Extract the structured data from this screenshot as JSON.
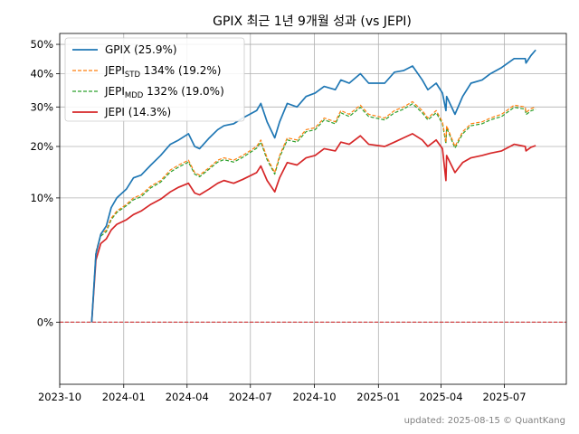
{
  "chart_data": {
    "type": "line",
    "title": "GPIX 최근 1년 9개월 성과 (vs JEPI)",
    "xlabel": "",
    "ylabel": "",
    "x_range": [
      "2023-10-01",
      "2025-09-28"
    ],
    "ylim": [
      -2.5,
      54
    ],
    "x_ticks": [
      {
        "date": "2023-10-01",
        "label": "2023-10"
      },
      {
        "date": "2024-01-01",
        "label": "2024-01"
      },
      {
        "date": "2024-04-01",
        "label": "2024-04"
      },
      {
        "date": "2024-07-01",
        "label": "2024-07"
      },
      {
        "date": "2024-10-01",
        "label": "2024-10"
      },
      {
        "date": "2025-01-01",
        "label": "2025-01"
      },
      {
        "date": "2025-04-01",
        "label": "2025-04"
      },
      {
        "date": "2025-07-01",
        "label": "2025-07"
      }
    ],
    "y_ticks": [
      {
        "value": 0,
        "label": "0%"
      },
      {
        "value": 10,
        "label": "10%"
      },
      {
        "value": 20,
        "label": "20%"
      },
      {
        "value": 30,
        "label": "30%"
      },
      {
        "value": 40,
        "label": "40%"
      },
      {
        "value": 50,
        "label": "50%"
      }
    ],
    "y_scale": "sqrt",
    "grid": true,
    "legend_position": "top-left",
    "reference_line": {
      "y": 0,
      "color": "#d62728",
      "style": "dashed"
    },
    "series": [
      {
        "key": "gpix",
        "name": "GPIX (25.9%)",
        "color": "#1f77b4",
        "style": "solid",
        "points": [
          [
            "2023-11-16",
            0
          ],
          [
            "2023-11-22",
            3
          ],
          [
            "2023-11-29",
            5
          ],
          [
            "2023-12-07",
            6
          ],
          [
            "2023-12-14",
            8.5
          ],
          [
            "2023-12-22",
            10
          ],
          [
            "2024-01-05",
            11.5
          ],
          [
            "2024-01-15",
            13.5
          ],
          [
            "2024-01-26",
            14
          ],
          [
            "2024-02-09",
            16
          ],
          [
            "2024-02-23",
            18
          ],
          [
            "2024-03-08",
            20.5
          ],
          [
            "2024-03-20",
            21.5
          ],
          [
            "2024-04-03",
            23
          ],
          [
            "2024-04-12",
            20
          ],
          [
            "2024-04-19",
            19.5
          ],
          [
            "2024-05-03",
            22
          ],
          [
            "2024-05-15",
            24
          ],
          [
            "2024-05-24",
            25
          ],
          [
            "2024-06-07",
            25.5
          ],
          [
            "2024-06-20",
            27
          ],
          [
            "2024-07-10",
            29
          ],
          [
            "2024-07-16",
            31
          ],
          [
            "2024-07-25",
            26
          ],
          [
            "2024-08-05",
            22
          ],
          [
            "2024-08-12",
            26
          ],
          [
            "2024-08-23",
            31
          ],
          [
            "2024-09-06",
            30
          ],
          [
            "2024-09-19",
            33
          ],
          [
            "2024-10-02",
            34
          ],
          [
            "2024-10-15",
            36
          ],
          [
            "2024-10-31",
            35
          ],
          [
            "2024-11-08",
            38
          ],
          [
            "2024-11-20",
            37
          ],
          [
            "2024-12-06",
            40
          ],
          [
            "2024-12-18",
            37
          ],
          [
            "2025-01-10",
            37
          ],
          [
            "2025-01-24",
            40.5
          ],
          [
            "2025-02-06",
            41
          ],
          [
            "2025-02-19",
            42.5
          ],
          [
            "2025-03-05",
            38
          ],
          [
            "2025-03-13",
            35
          ],
          [
            "2025-03-25",
            37
          ],
          [
            "2025-04-03",
            34
          ],
          [
            "2025-04-08",
            29
          ],
          [
            "2025-04-09",
            33
          ],
          [
            "2025-04-21",
            28
          ],
          [
            "2025-05-02",
            33
          ],
          [
            "2025-05-14",
            37
          ],
          [
            "2025-05-30",
            38
          ],
          [
            "2025-06-11",
            40
          ],
          [
            "2025-06-27",
            42
          ],
          [
            "2025-07-15",
            45
          ],
          [
            "2025-07-31",
            45
          ],
          [
            "2025-08-01",
            43.5
          ],
          [
            "2025-08-08",
            46
          ],
          [
            "2025-08-15",
            48
          ]
        ]
      },
      {
        "key": "jepi_std",
        "name": "JEPI_STD 134% (19.2%)",
        "name_main": "JEPI",
        "name_sub": "STD",
        "name_rest": " 134% (19.2%)",
        "color": "#ff7f0e",
        "style": "dashed",
        "points": [
          [
            "2023-11-16",
            0
          ],
          [
            "2023-11-22",
            3.2
          ],
          [
            "2023-11-29",
            5
          ],
          [
            "2023-12-07",
            5.5
          ],
          [
            "2023-12-14",
            7
          ],
          [
            "2023-12-22",
            8
          ],
          [
            "2024-01-05",
            9
          ],
          [
            "2024-01-15",
            10
          ],
          [
            "2024-01-26",
            10.5
          ],
          [
            "2024-02-09",
            12
          ],
          [
            "2024-02-23",
            13
          ],
          [
            "2024-03-08",
            15
          ],
          [
            "2024-03-20",
            16
          ],
          [
            "2024-04-03",
            17
          ],
          [
            "2024-04-12",
            14.5
          ],
          [
            "2024-04-19",
            14
          ],
          [
            "2024-05-03",
            15.5
          ],
          [
            "2024-05-15",
            17
          ],
          [
            "2024-05-24",
            17.5
          ],
          [
            "2024-06-07",
            17
          ],
          [
            "2024-06-20",
            18
          ],
          [
            "2024-07-10",
            20
          ],
          [
            "2024-07-16",
            21.5
          ],
          [
            "2024-07-25",
            17.5
          ],
          [
            "2024-08-05",
            14.5
          ],
          [
            "2024-08-12",
            18
          ],
          [
            "2024-08-23",
            22
          ],
          [
            "2024-09-06",
            21.5
          ],
          [
            "2024-09-19",
            24
          ],
          [
            "2024-10-02",
            24.5
          ],
          [
            "2024-10-15",
            27
          ],
          [
            "2024-10-31",
            26
          ],
          [
            "2024-11-08",
            29
          ],
          [
            "2024-11-20",
            28
          ],
          [
            "2024-12-06",
            30.5
          ],
          [
            "2024-12-18",
            28
          ],
          [
            "2025-01-10",
            27
          ],
          [
            "2025-01-24",
            29
          ],
          [
            "2025-02-06",
            30
          ],
          [
            "2025-02-19",
            31.5
          ],
          [
            "2025-03-05",
            29
          ],
          [
            "2025-03-13",
            27
          ],
          [
            "2025-03-25",
            29
          ],
          [
            "2025-04-03",
            26
          ],
          [
            "2025-04-08",
            21
          ],
          [
            "2025-04-09",
            25
          ],
          [
            "2025-04-21",
            20
          ],
          [
            "2025-05-02",
            23.5
          ],
          [
            "2025-05-14",
            25.5
          ],
          [
            "2025-05-30",
            26
          ],
          [
            "2025-06-11",
            27
          ],
          [
            "2025-06-27",
            28
          ],
          [
            "2025-07-15",
            30.5
          ],
          [
            "2025-07-31",
            30
          ],
          [
            "2025-08-01",
            28.5
          ],
          [
            "2025-08-08",
            29.5
          ],
          [
            "2025-08-15",
            30
          ]
        ]
      },
      {
        "key": "jepi_mdd",
        "name": "JEPI_MDD 132% (19.0%)",
        "name_main": "JEPI",
        "name_sub": "MDD",
        "name_rest": " 132% (19.0%)",
        "color": "#2ca02c",
        "style": "dashed",
        "points": [
          [
            "2023-11-16",
            0
          ],
          [
            "2023-11-22",
            3.1
          ],
          [
            "2023-11-29",
            4.8
          ],
          [
            "2023-12-07",
            5.3
          ],
          [
            "2023-12-14",
            6.8
          ],
          [
            "2023-12-22",
            7.8
          ],
          [
            "2024-01-05",
            8.8
          ],
          [
            "2024-01-15",
            9.7
          ],
          [
            "2024-01-26",
            10.2
          ],
          [
            "2024-02-09",
            11.7
          ],
          [
            "2024-02-23",
            12.7
          ],
          [
            "2024-03-08",
            14.6
          ],
          [
            "2024-03-20",
            15.6
          ],
          [
            "2024-04-03",
            16.6
          ],
          [
            "2024-04-12",
            14.2
          ],
          [
            "2024-04-19",
            13.7
          ],
          [
            "2024-05-03",
            15.2
          ],
          [
            "2024-05-15",
            16.6
          ],
          [
            "2024-05-24",
            17.1
          ],
          [
            "2024-06-07",
            16.6
          ],
          [
            "2024-06-20",
            17.6
          ],
          [
            "2024-07-10",
            19.6
          ],
          [
            "2024-07-16",
            21
          ],
          [
            "2024-07-25",
            17.1
          ],
          [
            "2024-08-05",
            14.2
          ],
          [
            "2024-08-12",
            17.6
          ],
          [
            "2024-08-23",
            21.5
          ],
          [
            "2024-09-06",
            21
          ],
          [
            "2024-09-19",
            23.5
          ],
          [
            "2024-10-02",
            24
          ],
          [
            "2024-10-15",
            26.5
          ],
          [
            "2024-10-31",
            25.5
          ],
          [
            "2024-11-08",
            28.4
          ],
          [
            "2024-11-20",
            27.4
          ],
          [
            "2024-12-06",
            29.9
          ],
          [
            "2024-12-18",
            27.4
          ],
          [
            "2025-01-10",
            26.5
          ],
          [
            "2025-01-24",
            28.4
          ],
          [
            "2025-02-06",
            29.4
          ],
          [
            "2025-02-19",
            30.9
          ],
          [
            "2025-03-05",
            28.4
          ],
          [
            "2025-03-13",
            26.5
          ],
          [
            "2025-03-25",
            28.4
          ],
          [
            "2025-04-03",
            25.5
          ],
          [
            "2025-04-08",
            20.6
          ],
          [
            "2025-04-09",
            24.5
          ],
          [
            "2025-04-21",
            19.6
          ],
          [
            "2025-05-02",
            23
          ],
          [
            "2025-05-14",
            25
          ],
          [
            "2025-05-30",
            25.5
          ],
          [
            "2025-06-11",
            26.5
          ],
          [
            "2025-06-27",
            27.4
          ],
          [
            "2025-07-15",
            29.9
          ],
          [
            "2025-07-31",
            29.4
          ],
          [
            "2025-08-01",
            27.9
          ],
          [
            "2025-08-08",
            28.9
          ],
          [
            "2025-08-15",
            29.4
          ]
        ]
      },
      {
        "key": "jepi",
        "name": "JEPI (14.3%)",
        "color": "#d62728",
        "style": "solid",
        "points": [
          [
            "2023-11-16",
            0
          ],
          [
            "2023-11-22",
            2.5
          ],
          [
            "2023-11-29",
            4
          ],
          [
            "2023-12-07",
            4.5
          ],
          [
            "2023-12-14",
            5.5
          ],
          [
            "2023-12-22",
            6.2
          ],
          [
            "2024-01-05",
            6.8
          ],
          [
            "2024-01-15",
            7.5
          ],
          [
            "2024-01-26",
            8
          ],
          [
            "2024-02-09",
            9
          ],
          [
            "2024-02-23",
            9.8
          ],
          [
            "2024-03-08",
            11
          ],
          [
            "2024-03-20",
            11.8
          ],
          [
            "2024-04-03",
            12.5
          ],
          [
            "2024-04-12",
            10.8
          ],
          [
            "2024-04-19",
            10.5
          ],
          [
            "2024-05-03",
            11.5
          ],
          [
            "2024-05-15",
            12.5
          ],
          [
            "2024-05-24",
            13
          ],
          [
            "2024-06-07",
            12.5
          ],
          [
            "2024-06-20",
            13.2
          ],
          [
            "2024-07-10",
            14.5
          ],
          [
            "2024-07-16",
            15.8
          ],
          [
            "2024-07-25",
            13
          ],
          [
            "2024-08-05",
            11
          ],
          [
            "2024-08-12",
            13.5
          ],
          [
            "2024-08-23",
            16.5
          ],
          [
            "2024-09-06",
            16
          ],
          [
            "2024-09-19",
            17.5
          ],
          [
            "2024-10-02",
            18
          ],
          [
            "2024-10-15",
            19.5
          ],
          [
            "2024-10-31",
            19
          ],
          [
            "2024-11-08",
            21
          ],
          [
            "2024-11-20",
            20.5
          ],
          [
            "2024-12-06",
            22.5
          ],
          [
            "2024-12-18",
            20.5
          ],
          [
            "2025-01-10",
            20
          ],
          [
            "2025-01-24",
            21
          ],
          [
            "2025-02-06",
            22
          ],
          [
            "2025-02-19",
            23
          ],
          [
            "2025-03-05",
            21.5
          ],
          [
            "2025-03-13",
            20
          ],
          [
            "2025-03-25",
            21.5
          ],
          [
            "2025-04-03",
            19.5
          ],
          [
            "2025-04-08",
            13
          ],
          [
            "2025-04-09",
            18
          ],
          [
            "2025-04-21",
            14.5
          ],
          [
            "2025-05-02",
            16.5
          ],
          [
            "2025-05-14",
            17.5
          ],
          [
            "2025-05-30",
            18
          ],
          [
            "2025-06-11",
            18.5
          ],
          [
            "2025-06-27",
            19
          ],
          [
            "2025-07-15",
            20.5
          ],
          [
            "2025-07-31",
            20
          ],
          [
            "2025-08-01",
            19
          ],
          [
            "2025-08-08",
            19.8
          ],
          [
            "2025-08-15",
            20.2
          ]
        ]
      }
    ]
  },
  "footer": {
    "text": "updated: 2025-08-15 © QuantKang"
  }
}
